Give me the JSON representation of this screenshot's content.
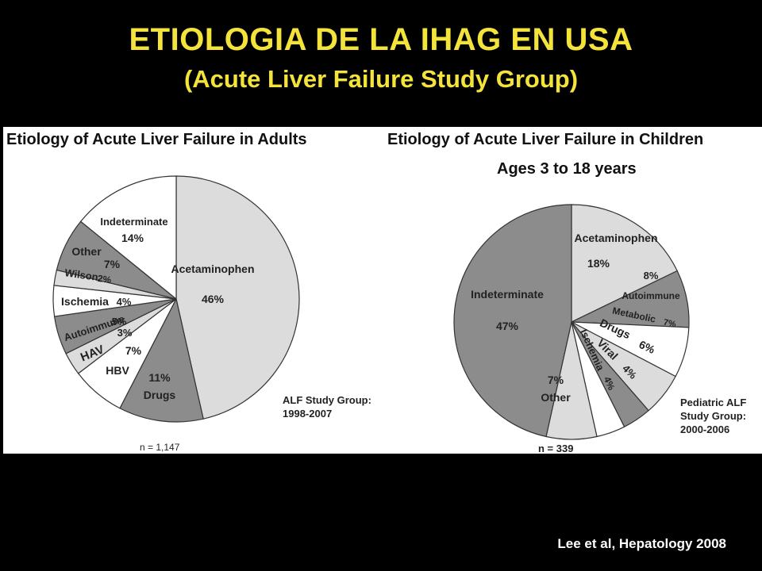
{
  "slide": {
    "title": "ETIOLOGIA DE LA IHAG EN USA",
    "subtitle": "(Acute Liver Failure Study Group)",
    "citation": "Lee et al, Hepatology 2008"
  },
  "colors": {
    "title": "#f3e33a",
    "light": "#dcdcdc",
    "dark": "#8c8c8c",
    "white": "#ffffff"
  },
  "chart_data": [
    {
      "type": "pie",
      "title": "Etiology of Acute Liver Failure in Adults",
      "source": "ALF Study Group:",
      "source_years": "1998-2007",
      "n_label": "n = 1,147",
      "slices": [
        {
          "name": "Acetaminophen",
          "value": 46,
          "pct": "46%",
          "shade": "light"
        },
        {
          "name": "Drugs",
          "value": 11,
          "pct": "11%",
          "shade": "dark"
        },
        {
          "name": "HBV",
          "value": 7,
          "pct": "7%",
          "shade": "white"
        },
        {
          "name": "HAV",
          "value": 3,
          "pct": "3%",
          "shade": "light"
        },
        {
          "name": "Autoimmune",
          "value": 5,
          "pct": "5%",
          "shade": "dark"
        },
        {
          "name": "Ischemia",
          "value": 4,
          "pct": "4%",
          "shade": "white"
        },
        {
          "name": "Wilson",
          "value": 2,
          "pct": "2%",
          "shade": "light"
        },
        {
          "name": "Other",
          "value": 7,
          "pct": "7%",
          "shade": "dark"
        },
        {
          "name": "Indeterminate",
          "value": 14,
          "pct": "14%",
          "shade": "white"
        }
      ]
    },
    {
      "type": "pie",
      "title": "Etiology of Acute Liver Failure in Children",
      "subtitle": "Ages 3 to 18 years",
      "source": "Pediatric ALF",
      "source_line2": "Study Group:",
      "source_years": "2000-2006",
      "n_label": "n = 339",
      "slices": [
        {
          "name": "Acetaminophen",
          "value": 18,
          "pct": "18%",
          "shade": "light"
        },
        {
          "name": "Autoimmune",
          "value": 8,
          "pct": "8%",
          "shade": "dark"
        },
        {
          "name": "Metabolic",
          "value": 7,
          "pct": "7%",
          "shade": "white"
        },
        {
          "name": "Drugs",
          "value": 6,
          "pct": "6%",
          "shade": "light"
        },
        {
          "name": "Viral",
          "value": 4,
          "pct": "4%",
          "shade": "dark"
        },
        {
          "name": "Ischemia",
          "value": 4,
          "pct": "4%",
          "shade": "white"
        },
        {
          "name": "Other",
          "value": 7,
          "pct": "7%",
          "shade": "light"
        },
        {
          "name": "Indeterminate",
          "value": 47,
          "pct": "47%",
          "shade": "dark"
        }
      ]
    }
  ]
}
